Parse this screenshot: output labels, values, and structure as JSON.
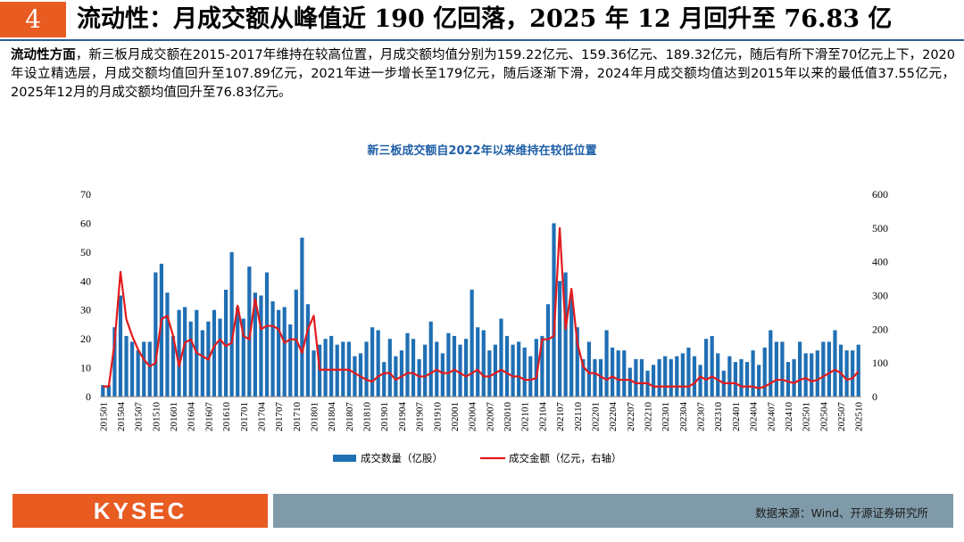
{
  "slide": {
    "number": "4",
    "title": "流动性：月成交额从峰值近 190 亿回落，2025 年 12 月回升至 76.83 亿",
    "paragraph_lead": "流动性方面",
    "paragraph_body": "，新三板月成交额在2015-2017年维持在较高位置，月成交额均值分别为159.22亿元、159.36亿元、189.32亿元，随后有所下滑至70亿元上下，2020年设立精选层，月成交额均值回升至107.89亿元，2021年进一步增长至179亿元，随后逐渐下滑，2024年月成交额均值达到2015年以来的最低值37.55亿元，2025年12月的月成交额均值回升至76.83亿元。"
  },
  "footer": {
    "logo": "KYSEC",
    "source": "数据来源：Wind、开源证券研究所"
  },
  "colors": {
    "accent": "#e85c22",
    "bar": "#1f6fb4",
    "line": "#e31a1c",
    "rule": "#2f5f95",
    "footer_right": "#7f9aa8"
  },
  "chart_data": {
    "type": "bar+line",
    "title": "新三板成交额自2022年以来维持在较低位置",
    "y_left": {
      "min": 0,
      "max": 70,
      "step": 10,
      "ticks": [
        "0",
        "10",
        "20",
        "30",
        "40",
        "50",
        "60",
        "70"
      ]
    },
    "y_right": {
      "min": 0,
      "max": 600,
      "step": 100,
      "ticks": [
        "0",
        "100",
        "200",
        "300",
        "400",
        "500",
        "600"
      ]
    },
    "tick_labels": [
      "201501",
      "201504",
      "201507",
      "201510",
      "201601",
      "201604",
      "201607",
      "201610",
      "201701",
      "201704",
      "201707",
      "201710",
      "201801",
      "201804",
      "201807",
      "201810",
      "201901",
      "201904",
      "201907",
      "201910",
      "202001",
      "202004",
      "202007",
      "202010",
      "202101",
      "202104",
      "202107",
      "202110",
      "202201",
      "202204",
      "202207",
      "202210",
      "202301",
      "202304",
      "202307",
      "202310",
      "202401",
      "202404",
      "202407",
      "202410",
      "202501",
      "202504",
      "202507",
      "202510"
    ],
    "start_period": "201501",
    "legend": [
      "成交数量（亿股）",
      "成交金额（亿元，右轴）"
    ],
    "series": [
      {
        "name": "成交数量（亿股）",
        "type": "bar",
        "axis": "left",
        "values": [
          4,
          4,
          24,
          35,
          21,
          19,
          16,
          19,
          19,
          43,
          46,
          36,
          21,
          30,
          31,
          26,
          30,
          23,
          26,
          30,
          27,
          37,
          50,
          31,
          27,
          45,
          36,
          35,
          43,
          33,
          30,
          31,
          25,
          37,
          55,
          32,
          16,
          18,
          20,
          21,
          18,
          19,
          19,
          14,
          15,
          19,
          24,
          23,
          12,
          20,
          14,
          16,
          22,
          20,
          13,
          18,
          26,
          19,
          15,
          22,
          21,
          18,
          20,
          37,
          24,
          23,
          16,
          18,
          27,
          21,
          18,
          19,
          17,
          14,
          20,
          21,
          32,
          60,
          40,
          43,
          35,
          24,
          13,
          19,
          13,
          13,
          23,
          17,
          16,
          16,
          10,
          13,
          13,
          9,
          11,
          13,
          14,
          13,
          14,
          15,
          17,
          14,
          11,
          20,
          21,
          15,
          9,
          14,
          12,
          13,
          12,
          16,
          11,
          17,
          23,
          19,
          19,
          12,
          13,
          19,
          15,
          15,
          16,
          19,
          19,
          23,
          18,
          16,
          16,
          18
        ]
      },
      {
        "name": "成交金额（亿元，右轴）",
        "type": "line",
        "axis": "right",
        "values": [
          30,
          30,
          160,
          370,
          230,
          180,
          140,
          110,
          90,
          100,
          230,
          240,
          180,
          90,
          160,
          170,
          130,
          120,
          110,
          150,
          170,
          150,
          160,
          270,
          180,
          170,
          290,
          200,
          210,
          210,
          200,
          160,
          170,
          170,
          130,
          200,
          240,
          80,
          80,
          80,
          80,
          80,
          80,
          70,
          60,
          50,
          45,
          60,
          70,
          70,
          50,
          60,
          70,
          70,
          60,
          60,
          70,
          80,
          70,
          70,
          80,
          70,
          60,
          70,
          80,
          60,
          60,
          70,
          80,
          70,
          60,
          60,
          50,
          50,
          55,
          170,
          170,
          180,
          500,
          200,
          320,
          160,
          90,
          70,
          70,
          60,
          50,
          60,
          50,
          50,
          50,
          40,
          40,
          40,
          30,
          30,
          30,
          30,
          30,
          30,
          30,
          40,
          60,
          50,
          60,
          50,
          40,
          40,
          40,
          30,
          30,
          30,
          25,
          30,
          40,
          50,
          50,
          45,
          40,
          50,
          55,
          45,
          50,
          60,
          70,
          80,
          70,
          50,
          55,
          75
        ]
      }
    ]
  }
}
